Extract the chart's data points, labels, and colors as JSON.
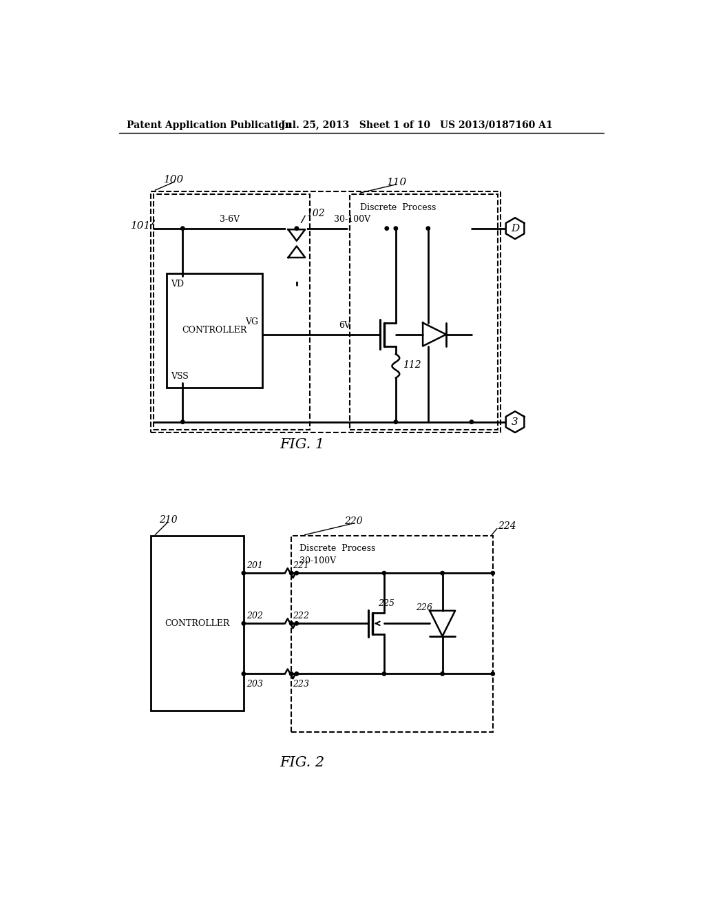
{
  "header_left": "Patent Application Publication",
  "header_mid": "Jul. 25, 2013   Sheet 1 of 10",
  "header_right": "US 2013/0187160 A1",
  "fig1_label": "FIG. 1",
  "fig2_label": "FIG. 2",
  "background": "#ffffff",
  "fig1": {
    "label_100": "100",
    "label_101": "101",
    "label_102": "102",
    "label_110": "110",
    "label_112": "112",
    "label_VD": "VD",
    "label_VG": "VG",
    "label_VSS": "VSS",
    "label_36V": "3-6V",
    "label_30100V": "30-100V",
    "label_6V": "6V",
    "label_D": "D",
    "label_3": "3",
    "label_discrete": "Discrete  Process"
  },
  "fig2": {
    "label_210": "210",
    "label_220": "220",
    "label_224": "224",
    "label_201": "201",
    "label_202": "202",
    "label_203": "203",
    "label_221": "221",
    "label_222": "222",
    "label_223": "223",
    "label_225": "225",
    "label_226": "226",
    "label_30100V": "30-100V",
    "label_discrete": "Discrete  Process",
    "label_controller": "CONTROLLER"
  }
}
